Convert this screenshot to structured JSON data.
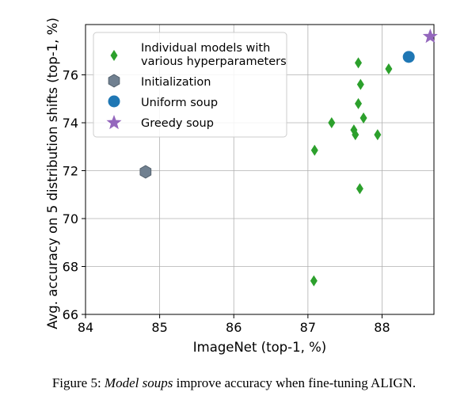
{
  "chart_data": {
    "type": "scatter",
    "xlabel": "ImageNet (top-1, %)",
    "ylabel": "Avg. accuracy on 5 distribution shifts (top-1, %)",
    "xlim": [
      84,
      88.7
    ],
    "ylim": [
      66,
      78.1
    ],
    "xticks": [
      84,
      85,
      86,
      87,
      88
    ],
    "yticks": [
      66,
      68,
      70,
      72,
      74,
      76
    ],
    "grid": true,
    "legend_position": "top-left",
    "series": [
      {
        "name": "Individual models with various hyperparameters",
        "legend_lines": [
          "Individual models with",
          "various hyperparameters"
        ],
        "marker": "diamond",
        "color": "#2ca02c",
        "points": [
          {
            "x": 87.08,
            "y": 67.4
          },
          {
            "x": 87.09,
            "y": 72.85
          },
          {
            "x": 87.32,
            "y": 74.0
          },
          {
            "x": 87.62,
            "y": 73.7
          },
          {
            "x": 87.64,
            "y": 73.5
          },
          {
            "x": 87.68,
            "y": 76.5
          },
          {
            "x": 87.68,
            "y": 74.8
          },
          {
            "x": 87.7,
            "y": 71.25
          },
          {
            "x": 87.71,
            "y": 75.6
          },
          {
            "x": 87.75,
            "y": 74.2
          },
          {
            "x": 87.94,
            "y": 73.5
          },
          {
            "x": 88.09,
            "y": 76.25
          }
        ]
      },
      {
        "name": "Initialization",
        "marker": "hexagon",
        "color": "#708090",
        "points": [
          {
            "x": 84.81,
            "y": 71.95
          }
        ]
      },
      {
        "name": "Uniform soup",
        "marker": "circle",
        "color": "#1f77b4",
        "points": [
          {
            "x": 88.36,
            "y": 76.75
          }
        ]
      },
      {
        "name": "Greedy soup",
        "marker": "star",
        "color": "#9467bd",
        "points": [
          {
            "x": 88.65,
            "y": 77.6
          }
        ]
      }
    ]
  },
  "caption": {
    "prefix": "Figure 5: ",
    "emphasis": "Model soups",
    "suffix": " improve accuracy when fine-tuning ALIGN."
  }
}
